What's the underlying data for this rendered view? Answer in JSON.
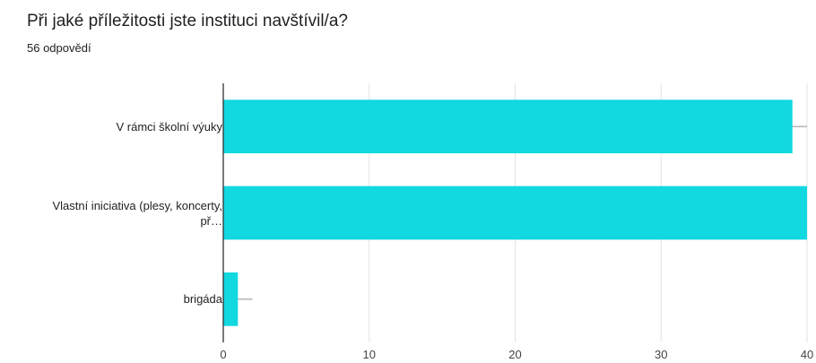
{
  "question": {
    "title": "Při jaké příležitosti jste instituci navštívil/a?",
    "responses": "56 odpovědí"
  },
  "chart_data": {
    "type": "bar",
    "orientation": "horizontal",
    "categories": [
      "V rámci školní výuky",
      "Vlastní iniciativa (plesy, koncerty, př…",
      "brigáda"
    ],
    "category_label_lines": [
      [
        "V rámci školní výuky"
      ],
      [
        "Vlastní iniciativa (plesy, koncerty,",
        "př…"
      ],
      [
        "brigáda"
      ]
    ],
    "values": [
      39,
      40,
      1
    ],
    "error_bar_upper": [
      40,
      40,
      2
    ],
    "xlim": [
      0,
      40
    ],
    "xticks": [
      0,
      10,
      20,
      30,
      40
    ],
    "grid": true,
    "bar_color": "#12d8e0",
    "title": "",
    "xlabel": "",
    "ylabel": ""
  }
}
